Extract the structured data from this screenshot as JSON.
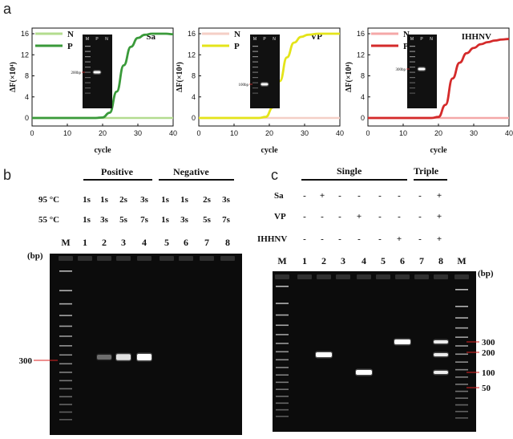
{
  "panels": {
    "a": "a",
    "b": "b",
    "c": "c"
  },
  "qpcr": {
    "y_axis_label": "ΔF(×10⁴)",
    "x_axis_label": "cycle",
    "legend_n": "N",
    "legend_p": "P",
    "colors": {
      "sa_p": "#3a9a3a",
      "sa_n": "#b3dc8f",
      "vp_p": "#e4e41a",
      "vp_n": "#f4cfc6",
      "ihhnv_p": "#d42a2a",
      "ihhnv_n": "#f4a8a8"
    }
  },
  "chart_data": [
    {
      "type": "line",
      "title": "Sa",
      "xlabel": "cycle",
      "ylabel": "ΔF(×10⁴)",
      "xlim": [
        0,
        40
      ],
      "ylim": [
        0,
        16
      ],
      "xticks": [
        0,
        10,
        20,
        30,
        40
      ],
      "yticks": [
        0,
        4,
        8,
        12,
        16
      ],
      "inset_label": "200bp",
      "inset_lanes": [
        "M",
        "P",
        "N"
      ],
      "series": [
        {
          "name": "N",
          "x": [
            0,
            40
          ],
          "y": [
            0,
            0
          ]
        },
        {
          "name": "P",
          "x": [
            0,
            18,
            20,
            22,
            24,
            26,
            28,
            30,
            32,
            34,
            36,
            38,
            40
          ],
          "y": [
            0,
            0,
            0.1,
            1.0,
            5.0,
            10.0,
            13.5,
            15.2,
            15.8,
            16.0,
            16.0,
            16.0,
            15.9
          ]
        }
      ]
    },
    {
      "type": "line",
      "title": "VP",
      "xlabel": "cycle",
      "ylabel": "ΔF(×10⁴)",
      "xlim": [
        0,
        40
      ],
      "ylim": [
        0,
        16
      ],
      "xticks": [
        0,
        10,
        20,
        30,
        40
      ],
      "yticks": [
        0,
        4,
        8,
        12,
        16
      ],
      "inset_label": "100bp",
      "inset_lanes": [
        "M",
        "P",
        "N"
      ],
      "series": [
        {
          "name": "N",
          "x": [
            0,
            40
          ],
          "y": [
            0,
            0
          ]
        },
        {
          "name": "P",
          "x": [
            0,
            17,
            19,
            21,
            23,
            25,
            27,
            29,
            31,
            34,
            37,
            40
          ],
          "y": [
            0,
            0,
            0.2,
            2.0,
            7.0,
            11.5,
            14.3,
            15.4,
            15.8,
            16.0,
            16.0,
            16.0
          ]
        }
      ]
    },
    {
      "type": "line",
      "title": "IHHNV",
      "xlabel": "cycle",
      "ylabel": "ΔF(×10⁴)",
      "xlim": [
        0,
        40
      ],
      "ylim": [
        0,
        16
      ],
      "xticks": [
        0,
        10,
        20,
        30,
        40
      ],
      "yticks": [
        0,
        4,
        8,
        12,
        16
      ],
      "inset_label": "300bp",
      "inset_lanes": [
        "M",
        "P",
        "N"
      ],
      "series": [
        {
          "name": "N",
          "x": [
            0,
            40
          ],
          "y": [
            0,
            0
          ]
        },
        {
          "name": "P",
          "x": [
            0,
            18,
            20,
            22,
            24,
            26,
            28,
            30,
            32,
            34,
            36,
            38,
            40
          ],
          "y": [
            0,
            0,
            0.2,
            2.5,
            7.5,
            10.5,
            12.3,
            13.3,
            14.0,
            14.4,
            14.7,
            14.9,
            15.0
          ]
        }
      ]
    }
  ],
  "gel_b": {
    "group_positive": "Positive",
    "group_negative": "Negative",
    "row1_label": "95 °C",
    "row2_label": "55 °C",
    "row1_values": [
      "1s",
      "1s",
      "2s",
      "3s",
      "1s",
      "1s",
      "2s",
      "3s"
    ],
    "row2_values": [
      "1s",
      "3s",
      "5s",
      "7s",
      "1s",
      "3s",
      "5s",
      "7s"
    ],
    "lanes": [
      "M",
      "1",
      "2",
      "3",
      "4",
      "5",
      "6",
      "7",
      "8"
    ],
    "bp_unit": "(bp)",
    "marker_label": "300",
    "band_intensity": [
      0,
      0.35,
      0.85,
      1.0,
      0,
      0,
      0,
      0
    ]
  },
  "gel_c": {
    "group_single": "Single",
    "group_triple": "Triple",
    "row_labels": [
      "Sa",
      "VP",
      "IHHNV"
    ],
    "signs": [
      [
        "-",
        "+",
        "-",
        "-",
        "-",
        "-",
        "-",
        "+"
      ],
      [
        "-",
        "-",
        "-",
        "+",
        "-",
        "-",
        "-",
        "+"
      ],
      [
        "-",
        "-",
        "-",
        "-",
        "-",
        "+",
        "-",
        "+"
      ]
    ],
    "lanes": [
      "M",
      "1",
      "2",
      "3",
      "4",
      "5",
      "6",
      "7",
      "8",
      "M"
    ],
    "bp_unit": "(bp)",
    "markers": [
      "300",
      "200",
      "100",
      "50"
    ]
  }
}
